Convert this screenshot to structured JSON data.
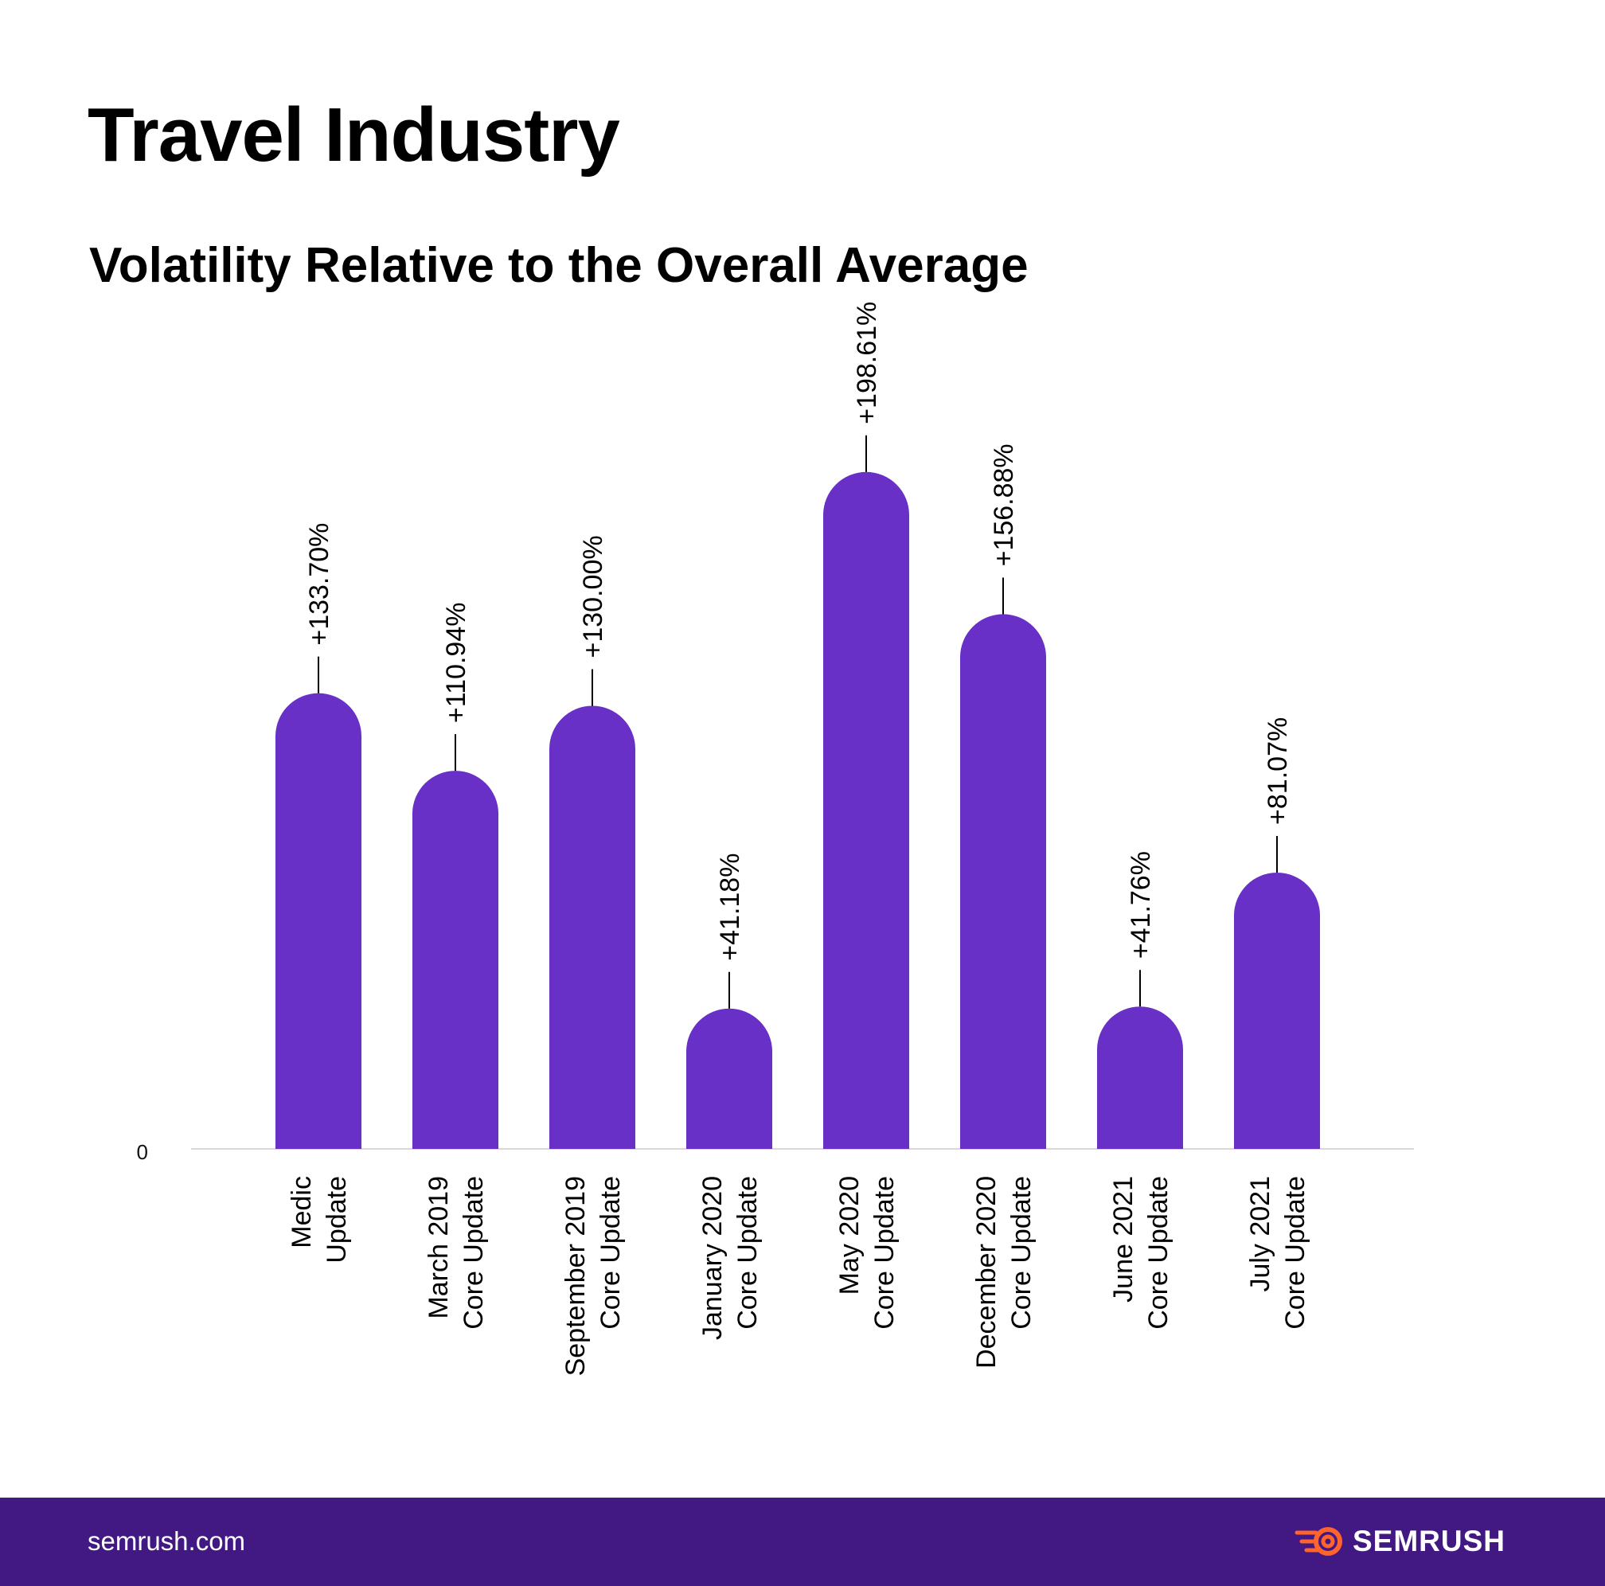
{
  "header": {
    "title": "Travel Industry",
    "subtitle": "Volatility Relative to the Overall Average"
  },
  "chart_data": {
    "type": "bar",
    "title": "Travel Industry",
    "subtitle": "Volatility Relative to the Overall Average",
    "xlabel": "",
    "ylabel": "",
    "ylim": [
      0,
      260
    ],
    "yticks": [
      0
    ],
    "ytick_labels": [
      "0"
    ],
    "grid": false,
    "legend": "none",
    "categories": [
      [
        "Medic",
        "Update"
      ],
      [
        "March 2019",
        "Core Update"
      ],
      [
        "September 2019",
        "Core Update"
      ],
      [
        "January 2020",
        "Core Update"
      ],
      [
        "May 2020",
        "Core Update"
      ],
      [
        "December 2020",
        "Core Update"
      ],
      [
        "June 2021",
        "Core Update"
      ],
      [
        "July 2021",
        "Core Update"
      ]
    ],
    "values": [
      133.7,
      110.94,
      130.0,
      41.18,
      198.61,
      156.88,
      41.76,
      81.07
    ],
    "value_labels": [
      "+133.70%",
      "+110.94%",
      "+130.00%",
      "+41.18%",
      "+198.61%",
      "+156.88%",
      "+41.76%",
      "+81.07%"
    ],
    "bar_color": "#6930C8",
    "axis_color": "#D8D8D8"
  },
  "footer": {
    "site": "semrush.com",
    "brand": "SEMRUSH",
    "brand_icon": "semrush-flame-icon",
    "background": "#421983",
    "icon_color": "#FF642D"
  }
}
